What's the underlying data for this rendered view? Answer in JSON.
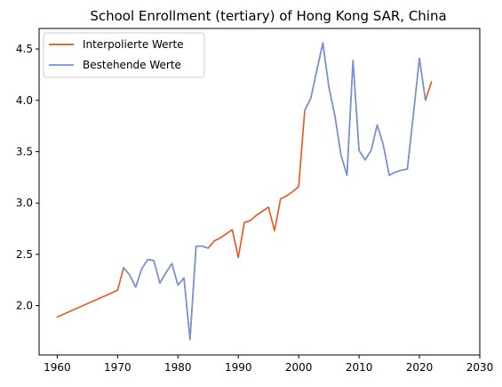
{
  "chart_data": {
    "type": "line",
    "title": "School Enrollment (tertiary) of Hong Kong SAR, China",
    "xlabel": "",
    "ylabel": "",
    "xlim": [
      1957,
      2030
    ],
    "ylim": [
      1.52,
      4.7
    ],
    "xticks": [
      1960,
      1970,
      1980,
      1990,
      2000,
      2010,
      2020,
      2030
    ],
    "yticks": [
      2.0,
      2.5,
      3.0,
      3.5,
      4.0,
      4.5
    ],
    "grid": false,
    "legend_position": "top-left",
    "series": [
      {
        "name": "Interpolierte Werte",
        "color": "#f0501e",
        "x": [
          1960,
          1970,
          1971,
          1972,
          1973,
          1974,
          1975,
          1976,
          1977,
          1978,
          1979,
          1980,
          1981,
          1982,
          1983,
          1984,
          1985,
          1986,
          1987,
          1988,
          1989,
          1990,
          1991,
          1992,
          1993,
          1994,
          1995,
          1996,
          1997,
          1998,
          1999,
          2000,
          2001,
          2002,
          2003,
          2004,
          2005,
          2006,
          2007,
          2008,
          2009,
          2010,
          2011,
          2012,
          2013,
          2014,
          2015,
          2016,
          2017,
          2018,
          2019,
          2020,
          2021,
          2022
        ],
        "y": [
          1.89,
          2.15,
          2.37,
          2.3,
          2.18,
          2.36,
          2.45,
          2.44,
          2.22,
          2.32,
          2.41,
          2.2,
          2.27,
          1.67,
          2.58,
          2.58,
          2.56,
          2.63,
          2.66,
          2.7,
          2.74,
          2.47,
          2.81,
          2.83,
          2.88,
          2.92,
          2.96,
          2.73,
          3.04,
          3.07,
          3.11,
          3.16,
          3.9,
          4.02,
          4.29,
          4.56,
          4.13,
          3.85,
          3.47,
          3.27,
          4.39,
          3.51,
          3.42,
          3.51,
          3.76,
          3.57,
          3.27,
          3.3,
          3.32,
          3.33,
          3.86,
          4.41,
          4.0,
          4.18
        ]
      },
      {
        "name": "Bestehende Werte",
        "color": "#6d95de",
        "segments": [
          {
            "x": [
              1971,
              1972,
              1973,
              1974,
              1975,
              1976,
              1977,
              1978,
              1979,
              1980,
              1981,
              1982,
              1983,
              1984,
              1985
            ],
            "y": [
              2.37,
              2.3,
              2.18,
              2.36,
              2.45,
              2.44,
              2.22,
              2.32,
              2.41,
              2.2,
              2.27,
              1.67,
              2.58,
              2.58,
              2.56
            ]
          },
          {
            "x": [
              2001,
              2002,
              2003,
              2004,
              2005,
              2006,
              2007,
              2008,
              2009,
              2010,
              2011,
              2012,
              2013,
              2014,
              2015,
              2016,
              2017,
              2018,
              2019,
              2020,
              2021
            ],
            "y": [
              3.9,
              4.02,
              4.29,
              4.56,
              4.13,
              3.85,
              3.47,
              3.27,
              4.39,
              3.51,
              3.42,
              3.51,
              3.76,
              3.57,
              3.27,
              3.3,
              3.32,
              3.33,
              3.86,
              4.41,
              4.0
            ]
          }
        ]
      }
    ]
  }
}
